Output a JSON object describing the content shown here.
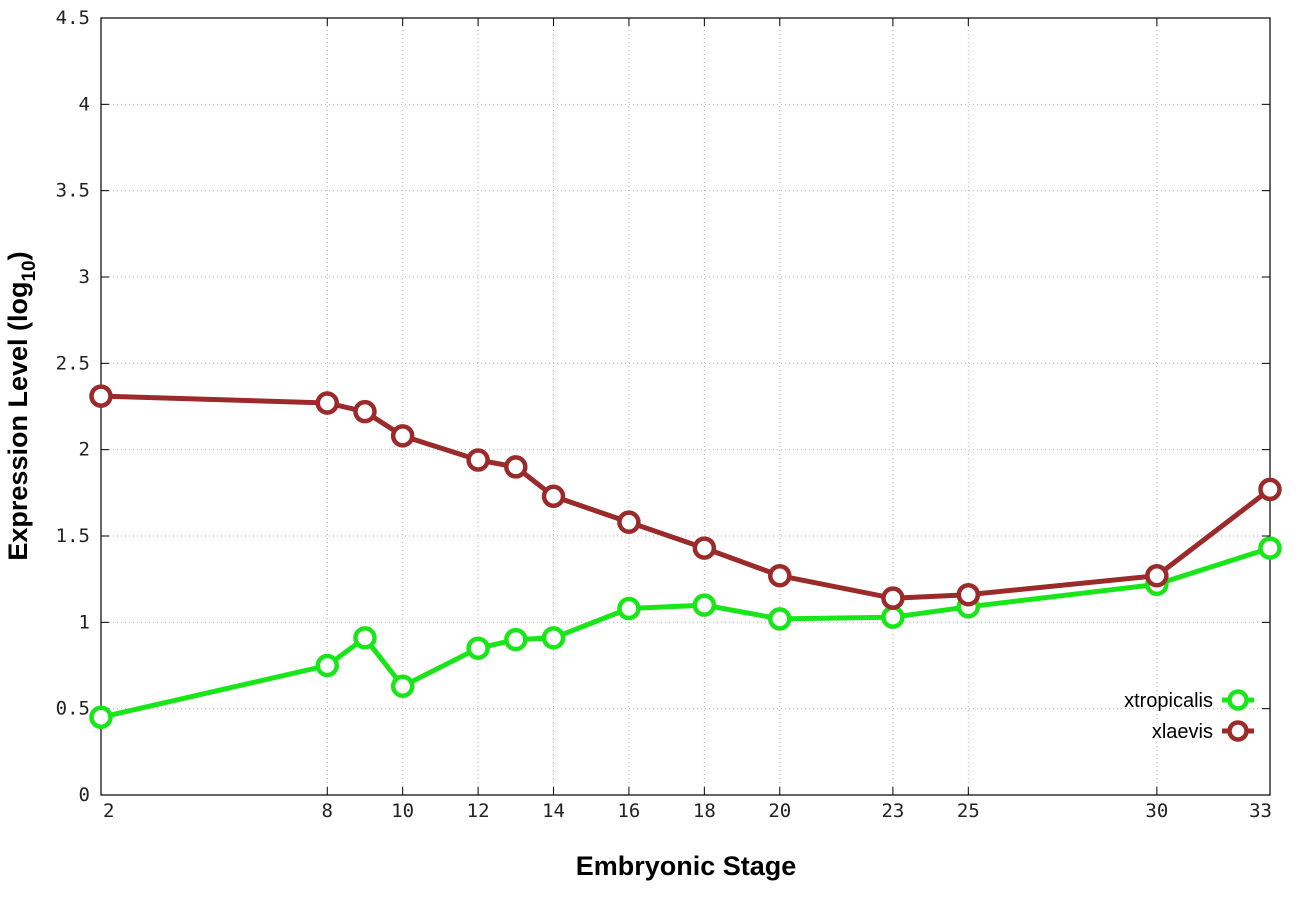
{
  "chart_data": {
    "type": "line",
    "xlabel": "Embryonic Stage",
    "ylabel": {
      "main": "Expression Level (log",
      "sub": "10",
      "close": ")"
    },
    "x": [
      2,
      8,
      9,
      10,
      12,
      13,
      14,
      16,
      18,
      20,
      23,
      25,
      30,
      33
    ],
    "xticks": [
      "2",
      "8",
      "10",
      "12",
      "14",
      "16",
      "18",
      "20",
      "23",
      "25",
      "30",
      "33"
    ],
    "xtick_values": [
      2,
      8,
      10,
      12,
      14,
      16,
      18,
      20,
      23,
      25,
      30,
      33
    ],
    "yticks": [
      "0",
      "0.5",
      "1",
      "1.5",
      "2",
      "2.5",
      "3",
      "3.5",
      "4",
      "4.5"
    ],
    "ytick_values": [
      0,
      0.5,
      1,
      1.5,
      2,
      2.5,
      3,
      3.5,
      4,
      4.5
    ],
    "xlim": [
      2,
      33
    ],
    "ylim": [
      0,
      4.5
    ],
    "grid": true,
    "legend_position": "bottom-right",
    "series": [
      {
        "name": "xtropicalis",
        "color": "#19e619",
        "values": [
          0.45,
          0.75,
          0.91,
          0.63,
          0.85,
          0.9,
          0.91,
          1.08,
          1.1,
          1.02,
          1.03,
          1.09,
          1.22,
          1.43
        ]
      },
      {
        "name": "xlaevis",
        "color": "#9b2a2a",
        "values": [
          2.31,
          2.27,
          2.22,
          2.08,
          1.94,
          1.9,
          1.73,
          1.58,
          1.43,
          1.27,
          1.14,
          1.16,
          1.27,
          1.77
        ]
      }
    ]
  }
}
